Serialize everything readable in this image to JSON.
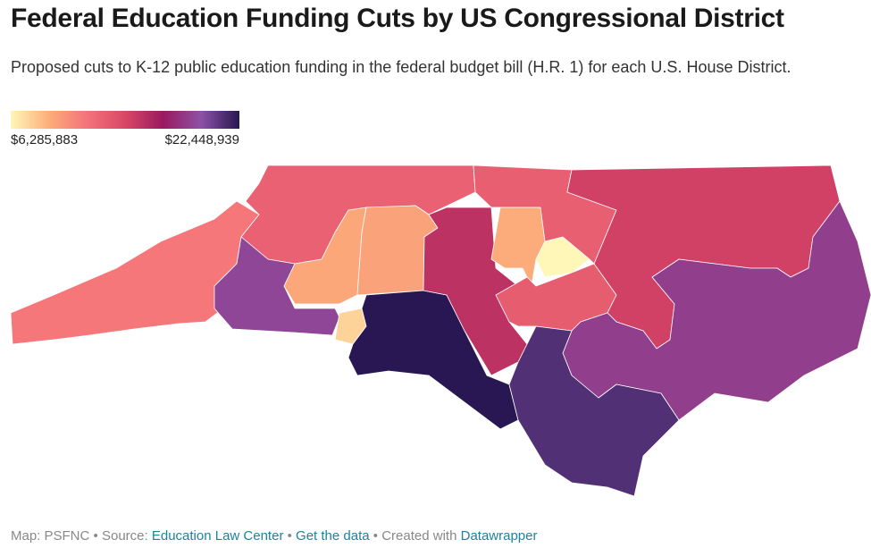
{
  "title": "Federal Education Funding Cuts by US Congressional District",
  "subtitle": "Proposed cuts to K-12 public education funding in the federal budget bill (H.R. 1) for each U.S. House District.",
  "legend": {
    "min": {
      "value": 6285883,
      "label": "$6,285,883"
    },
    "max": {
      "value": 22448939,
      "label": "$22,448,939"
    },
    "colors": [
      "#fef7b8",
      "#fcae7a",
      "#f4737a",
      "#d94766",
      "#9a1a5f",
      "#8c52a6",
      "#261650"
    ]
  },
  "districts": [
    11500000,
    12800000,
    19200000,
    9300000,
    9500000,
    7600000,
    22400000,
    15600000,
    9100000,
    6300000,
    13000000,
    12900000,
    14700000,
    18800000,
    21300000
  ],
  "footer": {
    "map": "Map: PSFNC",
    "separator": "•",
    "source_label": "Source:",
    "source": "Education Law Center",
    "data_link": "Get the data",
    "created": "Created with",
    "tool": "Datawrapper"
  }
}
